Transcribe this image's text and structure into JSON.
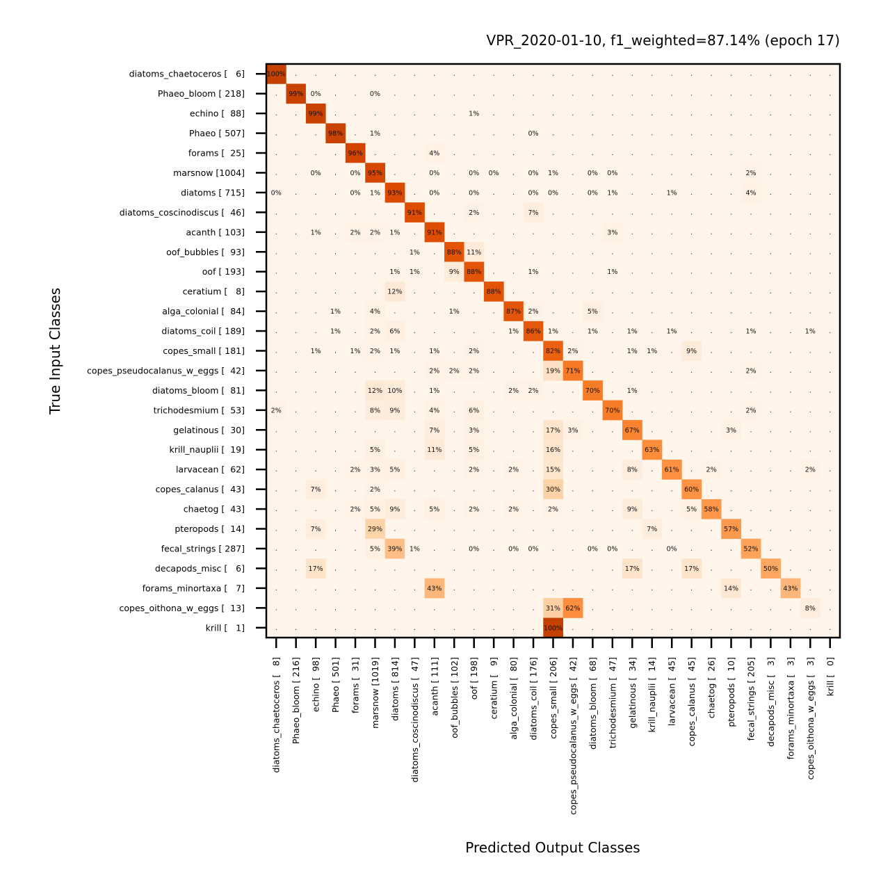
{
  "chart_data": {
    "type": "heatmap",
    "title": "VPR_2020-01-10, f1_weighted=87.14% (epoch 17)",
    "xlabel": "Predicted Output Classes",
    "ylabel": "True Input Classes",
    "colormap": "Oranges",
    "empty_marker": ".",
    "value_suffix": "%",
    "row_labels": [
      "diatoms_chaetoceros [   6]",
      "Phaeo_bloom [ 218]",
      "echino [  88]",
      "Phaeo [ 507]",
      "forams [  25]",
      "marsnow [1004]",
      "diatoms [ 715]",
      "diatoms_coscinodiscus [  46]",
      "acanth [ 103]",
      "oof_bubbles [  93]",
      "oof [ 193]",
      "ceratium [   8]",
      "alga_colonial [  84]",
      "diatoms_coil [ 189]",
      "copes_small [ 181]",
      "copes_pseudocalanus_w_eggs [  42]",
      "diatoms_bloom [  81]",
      "trichodesmium [  53]",
      "gelatinous [  30]",
      "krill_nauplii [  19]",
      "larvacean [  62]",
      "copes_calanus [  43]",
      "chaetog [  43]",
      "pteropods [  14]",
      "fecal_strings [ 287]",
      "decapods_misc [   6]",
      "forams_minortaxa [   7]",
      "copes_oithona_w_eggs [  13]",
      "krill [   1]"
    ],
    "col_labels": [
      "diatoms_chaetoceros [   8]",
      "Phaeo_bloom [ 216]",
      "echino [  98]",
      "Phaeo [ 501]",
      "forams [  31]",
      "marsnow [1019]",
      "diatoms [ 814]",
      "diatoms_coscinodiscus [  47]",
      "acanth [ 111]",
      "oof_bubbles [ 102]",
      "oof [ 198]",
      "ceratium [   9]",
      "alga_colonial [  80]",
      "diatoms_coil [ 176]",
      "copes_small [ 206]",
      "copes_pseudocalanus_w_eggs [  42]",
      "diatoms_bloom [  68]",
      "trichodesmium [  47]",
      "gelatinous [  34]",
      "krill_nauplii [  14]",
      "larvacean [  45]",
      "copes_calanus [  45]",
      "chaetog [  26]",
      "pteropods [  10]",
      "fecal_strings [ 205]",
      "decapods_misc [   3]",
      "forams_minortaxa [   3]",
      "copes_oithona_w_eggs [   3]",
      "krill [   0]"
    ],
    "cells": [
      [
        0,
        0,
        100
      ],
      [
        1,
        1,
        99
      ],
      [
        1,
        2,
        0
      ],
      [
        1,
        5,
        0
      ],
      [
        2,
        2,
        99
      ],
      [
        2,
        10,
        1
      ],
      [
        3,
        3,
        98
      ],
      [
        3,
        5,
        1
      ],
      [
        3,
        13,
        0
      ],
      [
        4,
        4,
        96
      ],
      [
        4,
        8,
        4
      ],
      [
        5,
        2,
        0
      ],
      [
        5,
        4,
        0
      ],
      [
        5,
        5,
        95
      ],
      [
        5,
        8,
        0
      ],
      [
        5,
        10,
        0
      ],
      [
        5,
        11,
        0
      ],
      [
        5,
        13,
        0
      ],
      [
        5,
        14,
        1
      ],
      [
        5,
        16,
        0
      ],
      [
        5,
        17,
        0
      ],
      [
        5,
        24,
        2
      ],
      [
        6,
        0,
        0
      ],
      [
        6,
        4,
        0
      ],
      [
        6,
        5,
        1
      ],
      [
        6,
        6,
        93
      ],
      [
        6,
        8,
        0
      ],
      [
        6,
        10,
        0
      ],
      [
        6,
        13,
        0
      ],
      [
        6,
        14,
        0
      ],
      [
        6,
        16,
        0
      ],
      [
        6,
        17,
        1
      ],
      [
        6,
        20,
        1
      ],
      [
        6,
        24,
        4
      ],
      [
        7,
        7,
        91
      ],
      [
        7,
        10,
        2
      ],
      [
        7,
        13,
        7
      ],
      [
        8,
        2,
        1
      ],
      [
        8,
        4,
        2
      ],
      [
        8,
        5,
        2
      ],
      [
        8,
        6,
        1
      ],
      [
        8,
        8,
        91
      ],
      [
        8,
        17,
        3
      ],
      [
        9,
        7,
        1
      ],
      [
        9,
        9,
        88
      ],
      [
        9,
        10,
        11
      ],
      [
        10,
        6,
        1
      ],
      [
        10,
        7,
        1
      ],
      [
        10,
        9,
        9
      ],
      [
        10,
        10,
        88
      ],
      [
        10,
        13,
        1
      ],
      [
        10,
        17,
        1
      ],
      [
        11,
        6,
        12
      ],
      [
        11,
        11,
        88
      ],
      [
        12,
        3,
        1
      ],
      [
        12,
        5,
        4
      ],
      [
        12,
        9,
        1
      ],
      [
        12,
        12,
        87
      ],
      [
        12,
        13,
        2
      ],
      [
        12,
        16,
        5
      ],
      [
        13,
        3,
        1
      ],
      [
        13,
        5,
        2
      ],
      [
        13,
        6,
        6
      ],
      [
        13,
        12,
        1
      ],
      [
        13,
        13,
        86
      ],
      [
        13,
        14,
        1
      ],
      [
        13,
        16,
        1
      ],
      [
        13,
        18,
        1
      ],
      [
        13,
        20,
        1
      ],
      [
        13,
        24,
        1
      ],
      [
        13,
        27,
        1
      ],
      [
        14,
        2,
        1
      ],
      [
        14,
        4,
        1
      ],
      [
        14,
        5,
        2
      ],
      [
        14,
        6,
        1
      ],
      [
        14,
        8,
        1
      ],
      [
        14,
        10,
        2
      ],
      [
        14,
        14,
        82
      ],
      [
        14,
        15,
        2
      ],
      [
        14,
        18,
        1
      ],
      [
        14,
        19,
        1
      ],
      [
        14,
        21,
        9
      ],
      [
        15,
        8,
        2
      ],
      [
        15,
        9,
        2
      ],
      [
        15,
        10,
        2
      ],
      [
        15,
        14,
        19
      ],
      [
        15,
        15,
        71
      ],
      [
        15,
        24,
        2
      ],
      [
        16,
        5,
        12
      ],
      [
        16,
        6,
        10
      ],
      [
        16,
        8,
        1
      ],
      [
        16,
        12,
        2
      ],
      [
        16,
        13,
        2
      ],
      [
        16,
        16,
        70
      ],
      [
        16,
        18,
        1
      ],
      [
        17,
        0,
        2
      ],
      [
        17,
        5,
        8
      ],
      [
        17,
        6,
        9
      ],
      [
        17,
        8,
        4
      ],
      [
        17,
        10,
        6
      ],
      [
        17,
        17,
        70
      ],
      [
        17,
        24,
        2
      ],
      [
        18,
        8,
        7
      ],
      [
        18,
        10,
        3
      ],
      [
        18,
        14,
        17
      ],
      [
        18,
        15,
        3
      ],
      [
        18,
        18,
        67
      ],
      [
        18,
        23,
        3
      ],
      [
        19,
        5,
        5
      ],
      [
        19,
        8,
        11
      ],
      [
        19,
        10,
        5
      ],
      [
        19,
        14,
        16
      ],
      [
        19,
        19,
        63
      ],
      [
        20,
        4,
        2
      ],
      [
        20,
        5,
        3
      ],
      [
        20,
        6,
        5
      ],
      [
        20,
        10,
        2
      ],
      [
        20,
        12,
        2
      ],
      [
        20,
        14,
        15
      ],
      [
        20,
        18,
        8
      ],
      [
        20,
        20,
        61
      ],
      [
        20,
        22,
        2
      ],
      [
        20,
        27,
        2
      ],
      [
        21,
        2,
        7
      ],
      [
        21,
        5,
        2
      ],
      [
        21,
        14,
        30
      ],
      [
        21,
        21,
        60
      ],
      [
        22,
        4,
        2
      ],
      [
        22,
        5,
        5
      ],
      [
        22,
        6,
        9
      ],
      [
        22,
        8,
        5
      ],
      [
        22,
        10,
        2
      ],
      [
        22,
        12,
        2
      ],
      [
        22,
        14,
        2
      ],
      [
        22,
        18,
        9
      ],
      [
        22,
        21,
        5
      ],
      [
        22,
        22,
        58
      ],
      [
        23,
        2,
        7
      ],
      [
        23,
        5,
        29
      ],
      [
        23,
        19,
        7
      ],
      [
        23,
        23,
        57
      ],
      [
        24,
        5,
        5
      ],
      [
        24,
        6,
        39
      ],
      [
        24,
        7,
        1
      ],
      [
        24,
        10,
        0
      ],
      [
        24,
        12,
        0
      ],
      [
        24,
        13,
        0
      ],
      [
        24,
        16,
        0
      ],
      [
        24,
        17,
        0
      ],
      [
        24,
        20,
        0
      ],
      [
        24,
        24,
        52
      ],
      [
        25,
        2,
        17
      ],
      [
        25,
        18,
        17
      ],
      [
        25,
        21,
        17
      ],
      [
        25,
        25,
        50
      ],
      [
        26,
        8,
        43
      ],
      [
        26,
        23,
        14
      ],
      [
        26,
        26,
        43
      ],
      [
        27,
        14,
        31
      ],
      [
        27,
        15,
        62
      ],
      [
        27,
        27,
        8
      ],
      [
        28,
        14,
        100
      ]
    ]
  }
}
